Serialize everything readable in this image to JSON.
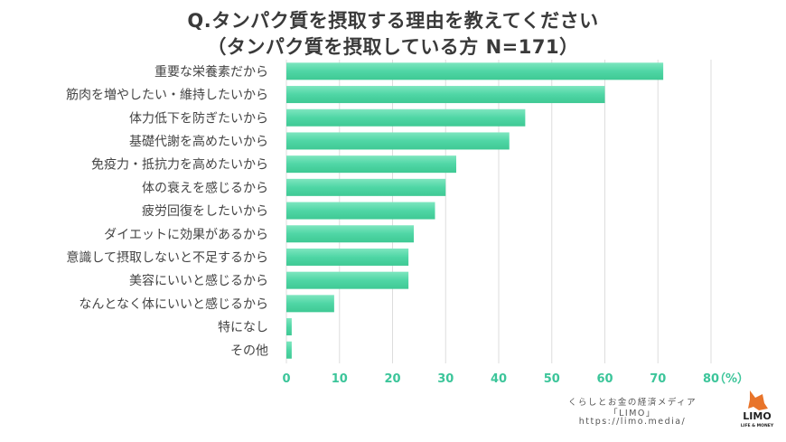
{
  "header": {
    "title": "Q.タンパク質を摂取する理由を教えてください",
    "subtitle": "（タンパク質を摂取している方 N=171）"
  },
  "chart_data": {
    "type": "bar",
    "orientation": "horizontal",
    "categories": [
      "重要な栄養素だから",
      "筋肉を増やしたい・維持したいから",
      "体力低下を防ぎたいから",
      "基礎代謝を高めたいから",
      "免疫力・抵抗力を高めたいから",
      "体の衰えを感じるから",
      "疲労回復をしたいから",
      "ダイエットに効果があるから",
      "意識して摂取しないと不足するから",
      "美容にいいと感じるから",
      "なんとなく体にいいと感じるから",
      "特になし",
      "その他"
    ],
    "values": [
      71,
      60,
      45,
      42,
      32,
      30,
      28,
      24,
      23,
      23,
      9,
      1,
      1
    ],
    "xlim": [
      0,
      80
    ],
    "xticks": [
      0,
      10,
      20,
      30,
      40,
      50,
      60,
      70,
      80
    ],
    "unit_label": "（%）",
    "grid": true,
    "bar_color": "#4fd6a5"
  },
  "footer": {
    "brand_line": "くらしとお金の経済メディア",
    "brand_name": "「LIMO」",
    "url": "https://limo.media/",
    "logo_text": "LIMO",
    "logo_sub": "LIFE & MONEY"
  },
  "colors": {
    "tick_color": "#3cc59a",
    "logo_orange": "#e8742a"
  }
}
